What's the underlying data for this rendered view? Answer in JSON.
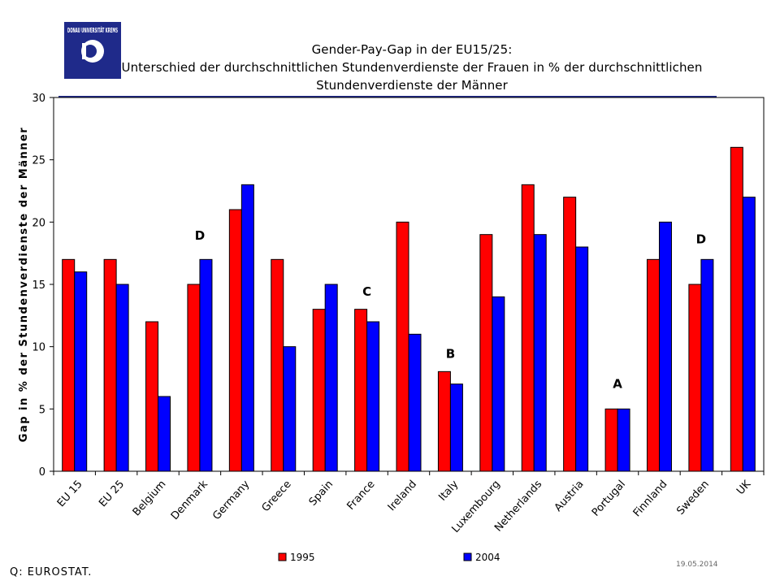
{
  "header": {
    "logo_text": "DONAU UNIVERSITÄT KREMS",
    "title_line1": "Gender-Pay-Gap in der EU15/25:",
    "title_line2": "Unterschied der durchschnittlichen Stundenverdienste der Frauen in % der durchschnittlichen",
    "title_line3": "Stundenverdienste der Männer"
  },
  "footer": {
    "source": "Q: EUROSTAT.",
    "date": "19.05.2014"
  },
  "colors": {
    "series_1995": "#ff0000",
    "series_2004": "#0000ff",
    "title_rule": "#1f2a8a",
    "logo_bg": "#1f2a8a"
  },
  "chart_data": {
    "type": "bar",
    "ylabel": "Gap in % der Stundenverdienste der Männer",
    "ylim": [
      0,
      30
    ],
    "yticks": [
      0,
      5,
      10,
      15,
      20,
      25,
      30
    ],
    "grid": false,
    "legend": "bottom",
    "categories": [
      "EU 15",
      "EU 25",
      "Belgium",
      "Denmark",
      "Germany",
      "Greece",
      "Spain",
      "France",
      "Ireland",
      "Italy",
      "Luxembourg",
      "Netherlands",
      "Austria",
      "Portugal",
      "Finnland",
      "Sweden",
      "UK"
    ],
    "series": [
      {
        "name": "1995",
        "values": [
          17,
          17,
          12,
          15,
          21,
          17,
          13,
          13,
          20,
          8,
          19,
          23,
          22,
          5,
          17,
          15,
          26
        ]
      },
      {
        "name": "2004",
        "values": [
          16,
          15,
          6,
          17,
          23,
          10,
          15,
          12,
          11,
          7,
          14,
          19,
          18,
          5,
          20,
          17,
          22
        ]
      }
    ],
    "annotations": [
      {
        "text": "D",
        "category": "Denmark",
        "y": 18.6
      },
      {
        "text": "C",
        "category": "France",
        "y": 14.1
      },
      {
        "text": "B",
        "category": "Italy",
        "y": 9.1
      },
      {
        "text": "A",
        "category": "Portugal",
        "y": 6.7
      },
      {
        "text": "D",
        "category": "Sweden",
        "y": 18.3
      }
    ]
  }
}
